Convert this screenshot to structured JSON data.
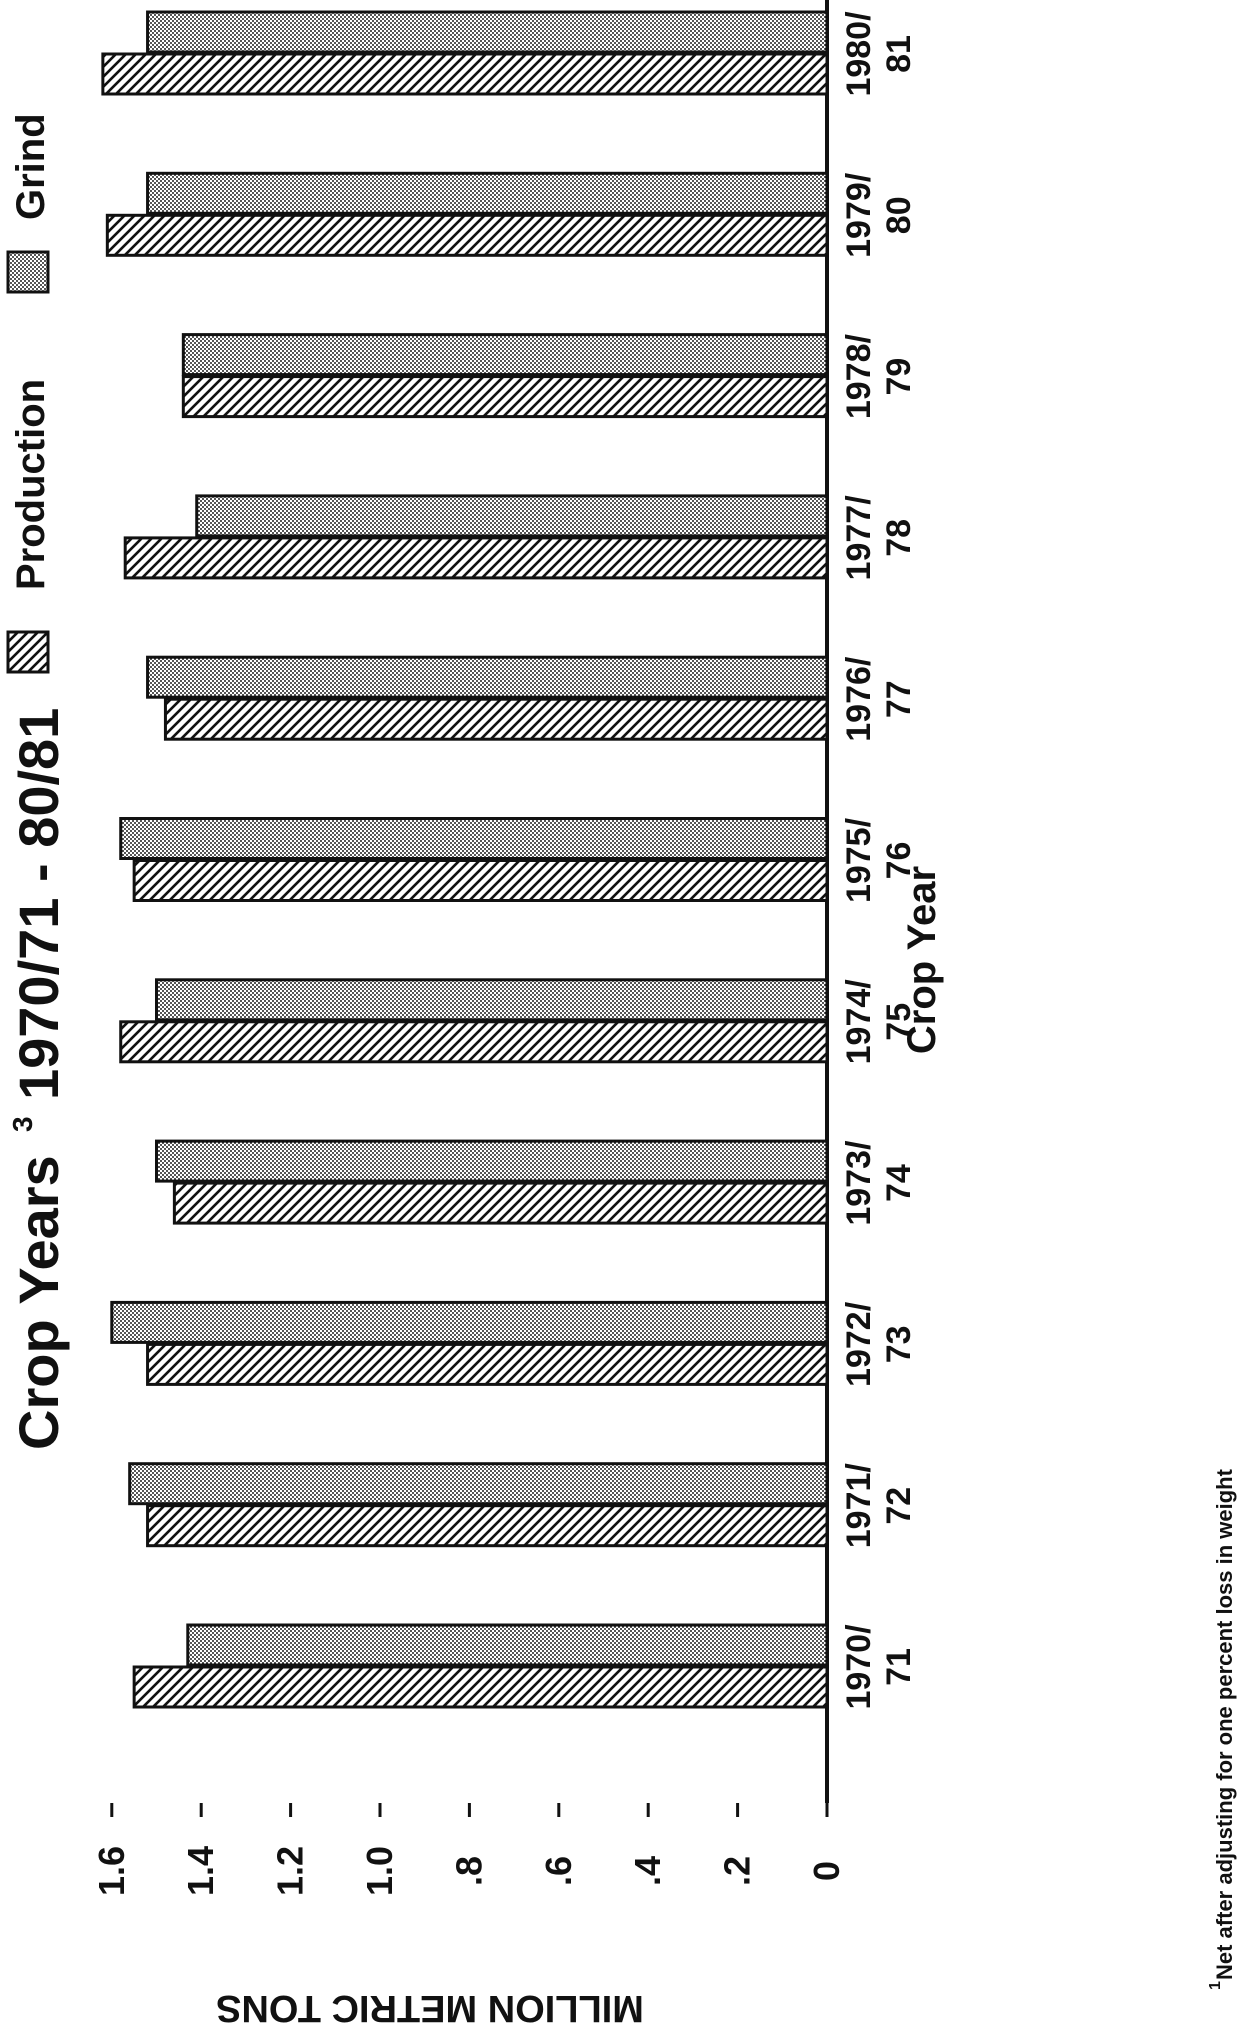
{
  "chart_data": {
    "type": "bar",
    "title": "Crop Years",
    "title_superscript": "3",
    "title_range": "1970/71 - 80/81",
    "xlabel": "Crop Year",
    "ylabel": "MILLION METRIC TONS",
    "ylim": [
      0,
      1.6
    ],
    "yticks": [
      "0",
      ".2",
      ".4",
      ".6",
      ".8",
      "1.0",
      "1.2",
      "1.4",
      "1.6"
    ],
    "grid": false,
    "legend_placement": "top-right",
    "categories": [
      [
        "1970/",
        "71"
      ],
      [
        "1971/",
        "72"
      ],
      [
        "1972/",
        "73"
      ],
      [
        "1973/",
        "74"
      ],
      [
        "1974/",
        "75"
      ],
      [
        "1975/",
        "76"
      ],
      [
        "1976/",
        "77"
      ],
      [
        "1977/",
        "78"
      ],
      [
        "1978/",
        "79"
      ],
      [
        "1979/",
        "80"
      ],
      [
        "1980/",
        "81"
      ]
    ],
    "series": [
      {
        "name": "Production",
        "values": [
          1.55,
          1.52,
          1.52,
          1.46,
          1.58,
          1.55,
          1.48,
          1.57,
          1.44,
          1.61,
          1.62
        ]
      },
      {
        "name": "Grind",
        "values": [
          1.43,
          1.56,
          1.6,
          1.5,
          1.5,
          1.58,
          1.52,
          1.41,
          1.44,
          1.52,
          1.52
        ]
      }
    ],
    "footnote": "Net after adjusting for one percent loss in weight"
  },
  "colors": {
    "bar_fill": "#ffffff",
    "ink": "#111111"
  }
}
